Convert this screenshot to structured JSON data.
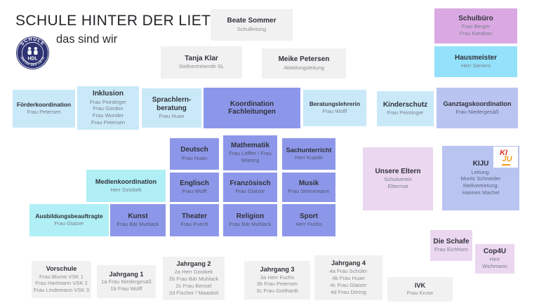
{
  "header": {
    "title": "SCHULE HINTER DER LIETH",
    "subtitle": "das sind wir",
    "logo": {
      "top": "SCHULE",
      "center": "HDL",
      "bottom": "HINTER DER LIETH"
    }
  },
  "colors": {
    "gray_box": "#f1f1f2",
    "plum_box": "#daa9e3",
    "cyan_box": "#93e1fa",
    "light_blue_box": "#c9e9f9",
    "periwinkle_box": "#8d97e9",
    "lavender_box": "#bac4f1",
    "aqua_box": "#afeff5",
    "pink_box": "#ebd7f0",
    "logo_navy": "#2e3374",
    "kiju_red": "#d93025",
    "kiju_orange": "#f29a1f"
  },
  "kiju_logo": {
    "top": "KI",
    "bottom": "JU"
  },
  "boxes": {
    "schulleitung": {
      "title": "Beate Sommer",
      "lines": [
        "Schulleitung"
      ]
    },
    "stellv_sl": {
      "title": "Tanja Klar",
      "lines": [
        "Stellvertretende SL"
      ]
    },
    "abteilungsleitung": {
      "title": "Meike Petersen",
      "lines": [
        "Abteilungsleitung"
      ]
    },
    "schulbuero": {
      "title": "Schulbüro",
      "lines": [
        "Frau Berger",
        "Frau Karahan"
      ]
    },
    "hausmeister": {
      "title": "Hausmeister",
      "lines": [
        "Herr Sievers"
      ]
    },
    "foerderkoordination": {
      "title": "Förderkoordination",
      "lines": [
        "Frau Petersen"
      ]
    },
    "inklusion": {
      "title": "Inklusion",
      "lines": [
        "Frau Peintinger",
        "Frau Gordon",
        "Frau Wunder",
        "Frau Petersen"
      ]
    },
    "sprachlernberatung": {
      "title": "Sprachlern-beratung",
      "lines": [
        "Frau Huan"
      ]
    },
    "koordination": {
      "title": "Koordination Fachleitungen",
      "lines": []
    },
    "beratungslehrerin": {
      "title": "Beratungslehrerin",
      "lines": [
        "Frau Wolff"
      ]
    },
    "kinderschutz": {
      "title": "Kinderschutz",
      "lines": [
        "Frau Peintinger"
      ]
    },
    "ganztagskoordination": {
      "title": "Ganztagskoordination",
      "lines": [
        "Frau Niedergesäß"
      ]
    },
    "deutsch": {
      "title": "Deutsch",
      "lines": [
        "Frau Huan"
      ]
    },
    "mathematik": {
      "title": "Mathematik",
      "lines": [
        "Frau Löffler / Frau Wiering"
      ]
    },
    "sachunterricht": {
      "title": "Sachunterricht",
      "lines": [
        "Herr Kupski"
      ]
    },
    "medienkoordination": {
      "title": "Medienkoordination",
      "lines": [
        "Herr Dziobek"
      ]
    },
    "englisch": {
      "title": "Englisch",
      "lines": [
        "Frau Wolff"
      ]
    },
    "franzoesisch": {
      "title": "Französisch",
      "lines": [
        "Frau Glatzer"
      ]
    },
    "musik": {
      "title": "Musik",
      "lines": [
        "Frau Stresemann"
      ]
    },
    "ausbildungsbeauftragte": {
      "title": "Ausbildungsbeauftragte",
      "lines": [
        "Frau Glatzer"
      ]
    },
    "kunst": {
      "title": "Kunst",
      "lines": [
        "Frau Bär Muhlack"
      ]
    },
    "theater": {
      "title": "Theater",
      "lines": [
        "Frau Puech"
      ]
    },
    "religion": {
      "title": "Religion",
      "lines": [
        "Frau Bär Muhlack"
      ]
    },
    "sport": {
      "title": "Sport",
      "lines": [
        "Herr Fuchs"
      ]
    },
    "eltern": {
      "title": "Unsere Eltern",
      "lines": [
        "Schulverein",
        "Elternrat"
      ]
    },
    "kiju": {
      "title": "KIJU",
      "lines": [
        "Leitung:",
        "Moritz Schneider",
        "Stellvertretung:",
        "Hannes Machel"
      ]
    },
    "schafe": {
      "title": "Die Schafe",
      "lines": [
        "Frau Eichhorn"
      ]
    },
    "cop4u": {
      "title": "Cop4U",
      "lines": [
        "Herr",
        "Wichmann"
      ]
    },
    "vorschule": {
      "title": "Vorschule",
      "lines": [
        "Frau Blume VSK 1",
        "Frau Hartmann VSK 2",
        "Frau Lindemann VSK 3"
      ]
    },
    "jahrgang1": {
      "title": "Jahrgang 1",
      "lines": [
        "1a Frau Niedergesäß",
        "1b Frau Wolff"
      ]
    },
    "jahrgang2": {
      "title": "Jahrgang 2",
      "lines": [
        "2a Herr Dziobek",
        "2b Frau Bär Muhlack",
        "2c Frau Bensel",
        "2d Fischer / Maasböl"
      ]
    },
    "jahrgang3": {
      "title": "Jahrgang 3",
      "lines": [
        "3a Herr Fuchs",
        "3b Frau Petersen",
        "3c Frau Gotthardt"
      ]
    },
    "jahrgang4": {
      "title": "Jahrgang 4",
      "lines": [
        "4a Frau Schüler",
        "4b Frau Huan",
        "4c Frau Glatzer",
        "4d Frau Döring"
      ]
    },
    "ivk": {
      "title": "IVK",
      "lines": [
        "Frau Kruse"
      ]
    }
  }
}
